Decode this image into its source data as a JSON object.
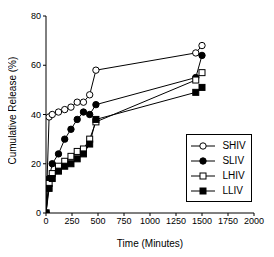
{
  "chart_data": {
    "type": "line",
    "x_label": "Time (Minutes)",
    "y_label": "Cumulative Release (%)",
    "x": [
      0,
      30,
      60,
      120,
      180,
      240,
      300,
      360,
      420,
      480,
      1440,
      1500
    ],
    "series": [
      {
        "name": "SHIV",
        "color": "#000000",
        "marker": "open circle",
        "values": [
          0,
          39,
          40,
          41,
          42,
          43,
          45,
          45,
          48,
          58,
          65,
          68
        ]
      },
      {
        "name": "SLIV",
        "color": "#000000",
        "marker": "circle",
        "values": [
          0,
          14,
          20,
          24,
          30,
          34,
          38,
          41,
          40,
          44,
          55,
          64
        ]
      },
      {
        "name": "LHIV",
        "color": "#000000",
        "marker": "open square",
        "values": [
          0,
          12,
          16,
          19,
          21,
          23,
          25,
          26,
          30,
          37,
          54,
          57
        ]
      },
      {
        "name": "LLIV",
        "color": "#000000",
        "marker": "square",
        "values": [
          0,
          10,
          14,
          17,
          19,
          20,
          22,
          24,
          28,
          38,
          49,
          51
        ]
      }
    ],
    "xlim": [
      0,
      2000
    ],
    "xticks": [
      0,
      250,
      500,
      750,
      1000,
      1250,
      1500,
      1750,
      2000
    ],
    "ylim": [
      0,
      80
    ],
    "yticks": [
      0,
      20,
      40,
      60,
      80
    ],
    "grid": false,
    "legend": "right"
  }
}
